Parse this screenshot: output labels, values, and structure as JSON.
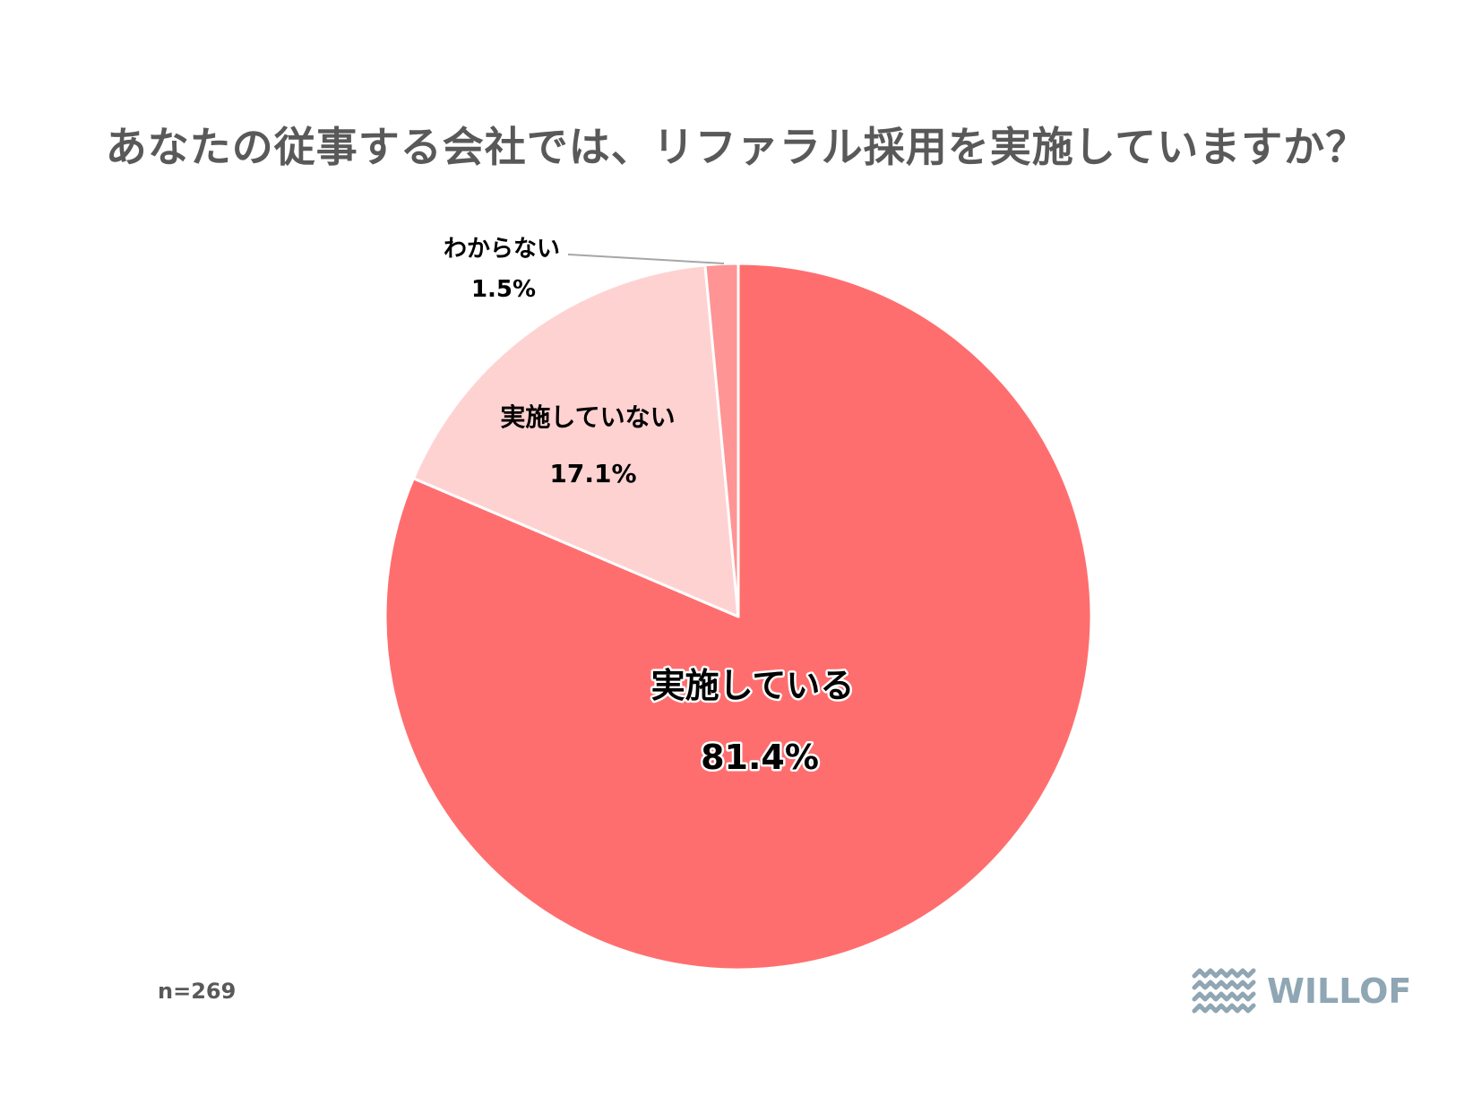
{
  "chart_data": {
    "type": "pie",
    "title": "あなたの従事する会社では、リファラル採用を実施していますか？",
    "slices": [
      {
        "label": "実施している",
        "value": 81.4,
        "value_label": "81.4%",
        "color": "#ff6e6e"
      },
      {
        "label": "実施していない",
        "value": 17.1,
        "value_label": "17.1%",
        "color": "#ffd2d2"
      },
      {
        "label": "わからない",
        "value": 1.5,
        "value_label": "1.5%",
        "color": "#ff9494"
      }
    ],
    "start": "12 o'clock",
    "direction": "clockwise",
    "legend": "none"
  },
  "footnote": "n=269",
  "brand": {
    "name": "WILLOF",
    "logo_icon": "waves-icon",
    "color": "#8fa6b4"
  }
}
